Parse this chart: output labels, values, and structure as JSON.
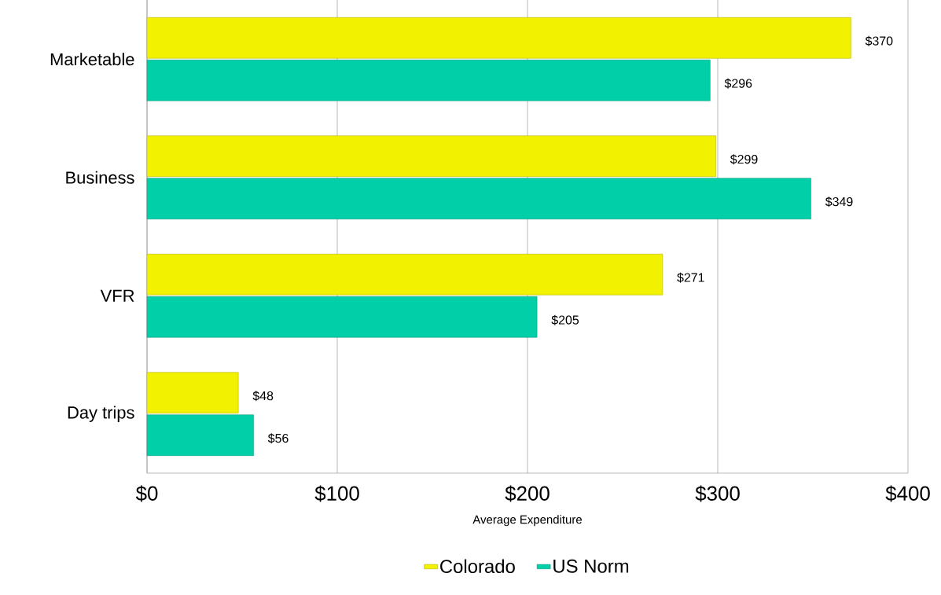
{
  "chart_data": {
    "type": "bar",
    "orientation": "horizontal",
    "xlabel": "Average Expenditure",
    "categories": [
      "Marketable",
      "Business",
      "VFR",
      "Day trips"
    ],
    "series": [
      {
        "name": "Colorado",
        "color": "#f2f200",
        "values": [
          370,
          299,
          271,
          48
        ],
        "value_labels": [
          "$370",
          "$299",
          "$271",
          "$48"
        ]
      },
      {
        "name": "US Norm",
        "color": "#00cfa8",
        "values": [
          296,
          349,
          205,
          56
        ],
        "value_labels": [
          "$296",
          "$349",
          "$205",
          "$56"
        ]
      }
    ],
    "xlim": [
      0,
      400
    ],
    "xticks": [
      {
        "value": 0,
        "label": "$0"
      },
      {
        "value": 100,
        "label": "$100"
      },
      {
        "value": 200,
        "label": "$200"
      },
      {
        "value": 300,
        "label": "$300"
      },
      {
        "value": 400,
        "label": "$400"
      }
    ],
    "grid": "x",
    "legend": "bottom"
  }
}
